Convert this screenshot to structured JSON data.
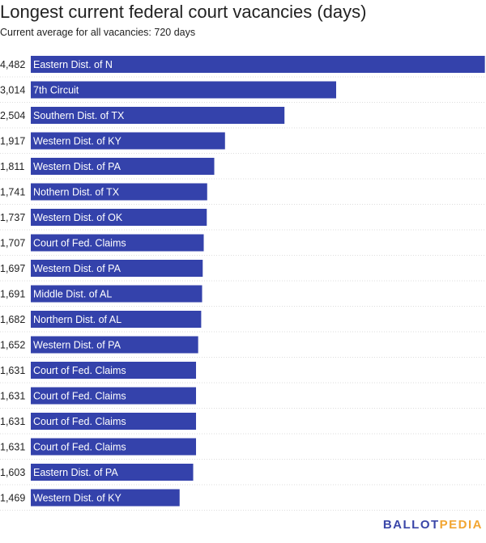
{
  "chart_data": {
    "type": "bar",
    "orientation": "horizontal",
    "title": "Longest current federal court vacancies (days)",
    "subtitle": "Current average for all vacancies: 720 days",
    "categories": [
      "Eastern Dist. of N",
      "7th Circuit",
      "Southern Dist. of TX",
      "Western Dist. of KY",
      "Western Dist. of PA",
      "Nothern Dist. of TX",
      "Western Dist. of OK",
      "Court of Fed. Claims",
      "Western Dist. of PA",
      "Middle Dist. of AL",
      "Northern Dist. of AL",
      "Western Dist. of PA",
      "Court of Fed. Claims",
      "Court of Fed. Claims",
      "Court of Fed. Claims",
      "Court of Fed. Claims",
      "Eastern Dist. of PA",
      "Western Dist. of KY"
    ],
    "values": [
      4482,
      3014,
      2504,
      1917,
      1811,
      1741,
      1737,
      1707,
      1697,
      1691,
      1682,
      1652,
      1631,
      1631,
      1631,
      1631,
      1603,
      1469
    ],
    "value_labels": [
      "4,482",
      "3,014",
      "2,504",
      "1,917",
      "1,811",
      "1,741",
      "1,737",
      "1,707",
      "1,697",
      "1,691",
      "1,682",
      "1,652",
      "1,631",
      "1,631",
      "1,631",
      "1,631",
      "1,603",
      "1,469"
    ],
    "bar_color": "#3442ab"
  },
  "logo": {
    "part1": "BALLOT",
    "part2": "PEDIA"
  }
}
